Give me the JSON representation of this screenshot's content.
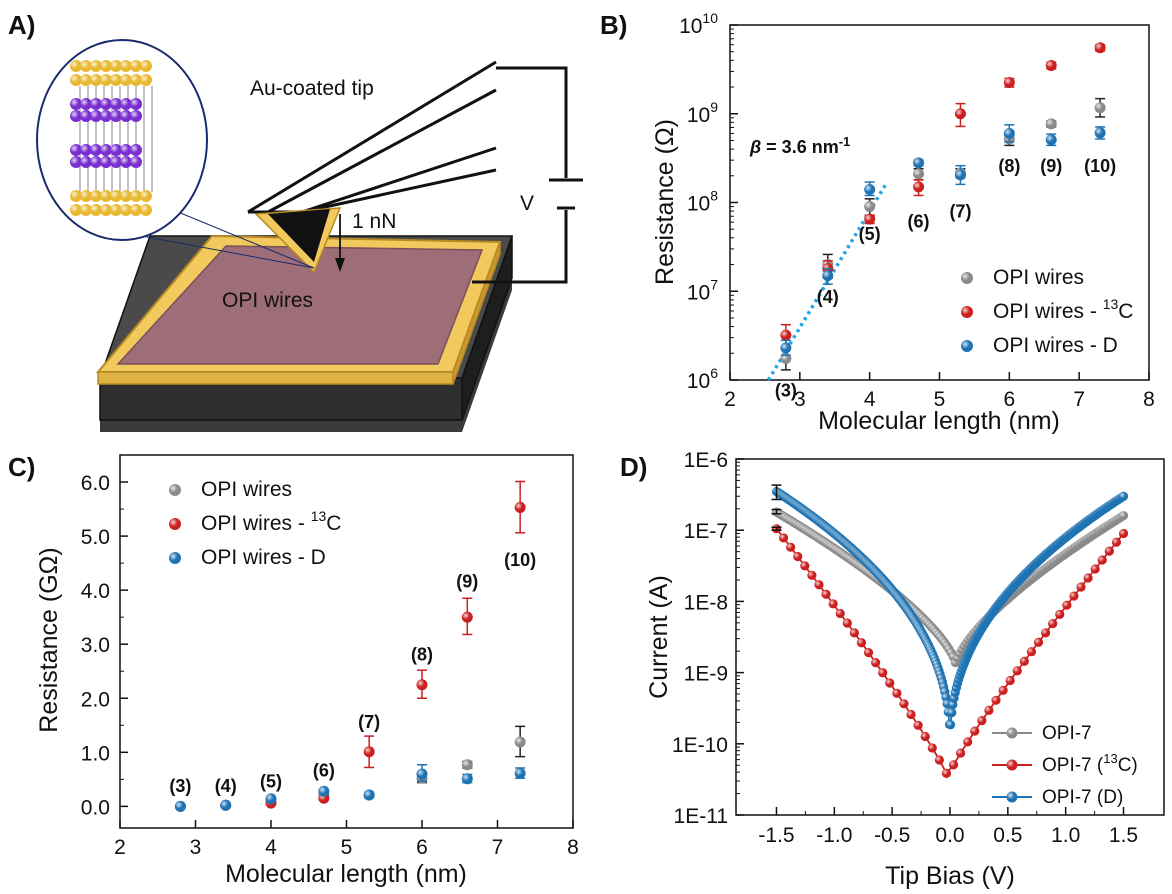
{
  "panels": {
    "A": "A)",
    "B": "B)",
    "C": "C)",
    "D": "D)"
  },
  "schematic": {
    "tip_label": "Au-coated tip",
    "force_label": "1 nN",
    "sample_label": "OPI wires",
    "voltage_label": "V"
  },
  "chart_data": [
    {
      "id": "B",
      "type": "scatter",
      "xlabel": "Molecular length (nm)",
      "ylabel": "Resistance (Ω)",
      "xlim": [
        2,
        8
      ],
      "xticks": [
        2,
        3,
        4,
        5,
        6,
        7,
        8
      ],
      "ylim": [
        1000000.0,
        10000000000.0
      ],
      "yscale": "log",
      "yticks": [
        {
          "v": 1000000.0,
          "exp": "6"
        },
        {
          "v": 10000000.0,
          "exp": "7"
        },
        {
          "v": 100000000.0,
          "exp": "8"
        },
        {
          "v": 1000000000.0,
          "exp": "9"
        },
        {
          "v": 10000000000.0,
          "exp": "10"
        }
      ],
      "legend_position": "bottom-right",
      "annotation": {
        "beta_symbol": "β",
        "beta_text": " = 3.6 nm",
        "beta_exp": "-1"
      },
      "fit_line": {
        "x": [
          2.55,
          4.25
        ],
        "y": [
          1000000.0,
          170000000.0
        ]
      },
      "point_labels": [
        {
          "x": 2.8,
          "y": 650000.0,
          "text": "(3)"
        },
        {
          "x": 3.4,
          "y": 7400000.0,
          "text": "(4)"
        },
        {
          "x": 4.0,
          "y": 38000000.0,
          "text": "(5)"
        },
        {
          "x": 4.7,
          "y": 52000000.0,
          "text": "(6)"
        },
        {
          "x": 5.3,
          "y": 68000000.0,
          "text": "(7)"
        },
        {
          "x": 6.0,
          "y": 220000000.0,
          "text": "(8)"
        },
        {
          "x": 6.6,
          "y": 220000000.0,
          "text": "(9)"
        },
        {
          "x": 7.3,
          "y": 220000000.0,
          "text": "(10)"
        }
      ],
      "series": [
        {
          "name": "OPI wires",
          "name_sup": "",
          "color": "#8a8a8a",
          "x": [
            2.8,
            3.4,
            4.0,
            4.7,
            5.3,
            6.0,
            6.6,
            7.3
          ],
          "y": [
            1750000.0,
            20000000.0,
            90000000.0,
            210000000.0,
            215000000.0,
            520000000.0,
            770000000.0,
            1170000000.0
          ],
          "err_lo": [
            1300000.0,
            15000000.0,
            70000000.0,
            180000000.0,
            190000000.0,
            440000000.0,
            710000000.0,
            920000000.0
          ],
          "err_hi": [
            2300000.0,
            26000000.0,
            110000000.0,
            240000000.0,
            240000000.0,
            630000000.0,
            830000000.0,
            1480000000.0
          ]
        },
        {
          "name": "OPI wires - ",
          "name_sup": "13",
          "name_end": "C",
          "color": "#cc1f1f",
          "x": [
            2.8,
            3.4,
            4.0,
            4.7,
            5.3,
            6.0,
            6.6,
            7.3
          ],
          "y": [
            3200000.0,
            18000000.0,
            65000000.0,
            150000000.0,
            1000000000.0,
            2250000000.0,
            3500000000.0,
            5550000000.0
          ],
          "err_lo": [
            2400000.0,
            14000000.0,
            58000000.0,
            120000000.0,
            720000000.0,
            2000000000.0,
            3200000000.0,
            5100000000.0
          ],
          "err_hi": [
            4200000.0,
            22000000.0,
            72000000.0,
            180000000.0,
            1300000000.0,
            2500000000.0,
            3800000000.0,
            6000000000.0
          ]
        },
        {
          "name": "OPI wires - D",
          "name_sup": "",
          "color": "#1e73b3",
          "x": [
            2.8,
            3.4,
            4.0,
            4.7,
            5.3,
            6.0,
            6.6,
            7.3
          ],
          "y": [
            2300000.0,
            15000000.0,
            140000000.0,
            280000000.0,
            205000000.0,
            600000000.0,
            510000000.0,
            610000000.0
          ],
          "err_lo": [
            1900000.0,
            12000000.0,
            120000000.0,
            260000000.0,
            160000000.0,
            480000000.0,
            440000000.0,
            520000000.0
          ],
          "err_hi": [
            2800000.0,
            18000000.0,
            170000000.0,
            300000000.0,
            260000000.0,
            750000000.0,
            590000000.0,
            710000000.0
          ]
        }
      ]
    },
    {
      "id": "C",
      "type": "scatter",
      "xlabel": "Molecular length (nm)",
      "ylabel": "Resistance (GΩ)",
      "xlim": [
        2,
        8
      ],
      "xticks": [
        2,
        3,
        4,
        5,
        6,
        7,
        8
      ],
      "ylim": [
        -0.4,
        6.5
      ],
      "yticks": [
        "0.0",
        "1.0",
        "2.0",
        "3.0",
        "4.0",
        "5.0",
        "6.0"
      ],
      "legend_position": "top-left",
      "point_labels": [
        {
          "x": 2.8,
          "y": 0.27,
          "text": "(3)"
        },
        {
          "x": 3.4,
          "y": 0.27,
          "text": "(4)"
        },
        {
          "x": 4.0,
          "y": 0.35,
          "text": "(5)"
        },
        {
          "x": 4.7,
          "y": 0.55,
          "text": "(6)"
        },
        {
          "x": 5.3,
          "y": 1.45,
          "text": "(7)"
        },
        {
          "x": 6.0,
          "y": 2.7,
          "text": "(8)"
        },
        {
          "x": 6.6,
          "y": 4.05,
          "text": "(9)"
        },
        {
          "x": 7.3,
          "y": 4.45,
          "text": "(10)"
        }
      ],
      "series": [
        {
          "name": "OPI wires",
          "name_sup": "",
          "color": "#8a8a8a",
          "x": [
            2.8,
            3.4,
            4.0,
            4.7,
            5.3,
            6.0,
            6.6,
            7.3
          ],
          "y": [
            0.0,
            0.02,
            0.09,
            0.21,
            0.21,
            0.52,
            0.77,
            1.19
          ],
          "err_lo": [
            0.0,
            0.02,
            0.07,
            0.18,
            0.19,
            0.44,
            0.71,
            0.92
          ],
          "err_hi": [
            0.0,
            0.03,
            0.11,
            0.24,
            0.24,
            0.63,
            0.83,
            1.48
          ]
        },
        {
          "name": "OPI wires - ",
          "name_sup": "13",
          "name_end": "C",
          "color": "#cc1f1f",
          "x": [
            2.8,
            3.4,
            4.0,
            4.7,
            5.3,
            6.0,
            6.6,
            7.3
          ],
          "y": [
            0.0,
            0.02,
            0.06,
            0.15,
            1.01,
            2.25,
            3.5,
            5.53
          ],
          "err_lo": [
            0.0,
            0.02,
            0.06,
            0.12,
            0.72,
            2.0,
            3.18,
            5.06
          ],
          "err_hi": [
            0.0,
            0.02,
            0.07,
            0.18,
            1.3,
            2.52,
            3.85,
            6.01
          ]
        },
        {
          "name": "OPI wires - D",
          "name_sup": "",
          "color": "#1e73b3",
          "x": [
            2.8,
            3.4,
            4.0,
            4.7,
            5.3,
            6.0,
            6.6,
            7.3
          ],
          "y": [
            0.0,
            0.02,
            0.14,
            0.28,
            0.21,
            0.6,
            0.51,
            0.61
          ],
          "err_lo": [
            0.0,
            0.02,
            0.12,
            0.26,
            0.16,
            0.47,
            0.44,
            0.52
          ],
          "err_hi": [
            0.0,
            0.02,
            0.17,
            0.3,
            0.26,
            0.77,
            0.59,
            0.71
          ]
        }
      ]
    },
    {
      "id": "D",
      "type": "line",
      "xlabel": "Tip Bias (V)",
      "ylabel": "Current (A)",
      "xlim": [
        -1.85,
        1.85
      ],
      "xticks": [
        "-1.5",
        "-1.0",
        "-0.5",
        "0.0",
        "0.5",
        "1.0",
        "1.5"
      ],
      "ylim": [
        1e-11,
        1e-06
      ],
      "yscale": "log",
      "yticks": [
        "1E-11",
        "1E-10",
        "1E-9",
        "1E-8",
        "1E-7",
        "1E-6"
      ],
      "legend_position": "bottom-right",
      "series": [
        {
          "name": "OPI-7",
          "color": "#8a8a8a",
          "points": 160,
          "I_neg": 1.8e-07,
          "I_pos": 1.6e-07,
          "I_min": 1.3e-09,
          "V_min": 0.05,
          "shape_exp": 0.7,
          "err_at_neg": [
            1.7e-07,
            1.95e-07
          ]
        },
        {
          "name": "OPI-7 (",
          "name_sup": "13",
          "name_end": "C)",
          "color": "#cc1f1f",
          "points": 50,
          "I_neg": 1.05e-07,
          "I_pos": 9e-08,
          "I_min": 3.5e-11,
          "V_min": -0.02,
          "shape_exp": 0.9,
          "err_at_neg": [
            1e-07,
            1.1e-07
          ]
        },
        {
          "name": "OPI-7 (D)",
          "color": "#1e73b3",
          "points": 300,
          "I_neg": 3.5e-07,
          "I_pos": 3e-07,
          "I_min": 1e-10,
          "V_min": 0.0,
          "shape_exp": 0.45,
          "err_at_neg": [
            2.7e-07,
            4.3e-07
          ]
        }
      ]
    }
  ]
}
